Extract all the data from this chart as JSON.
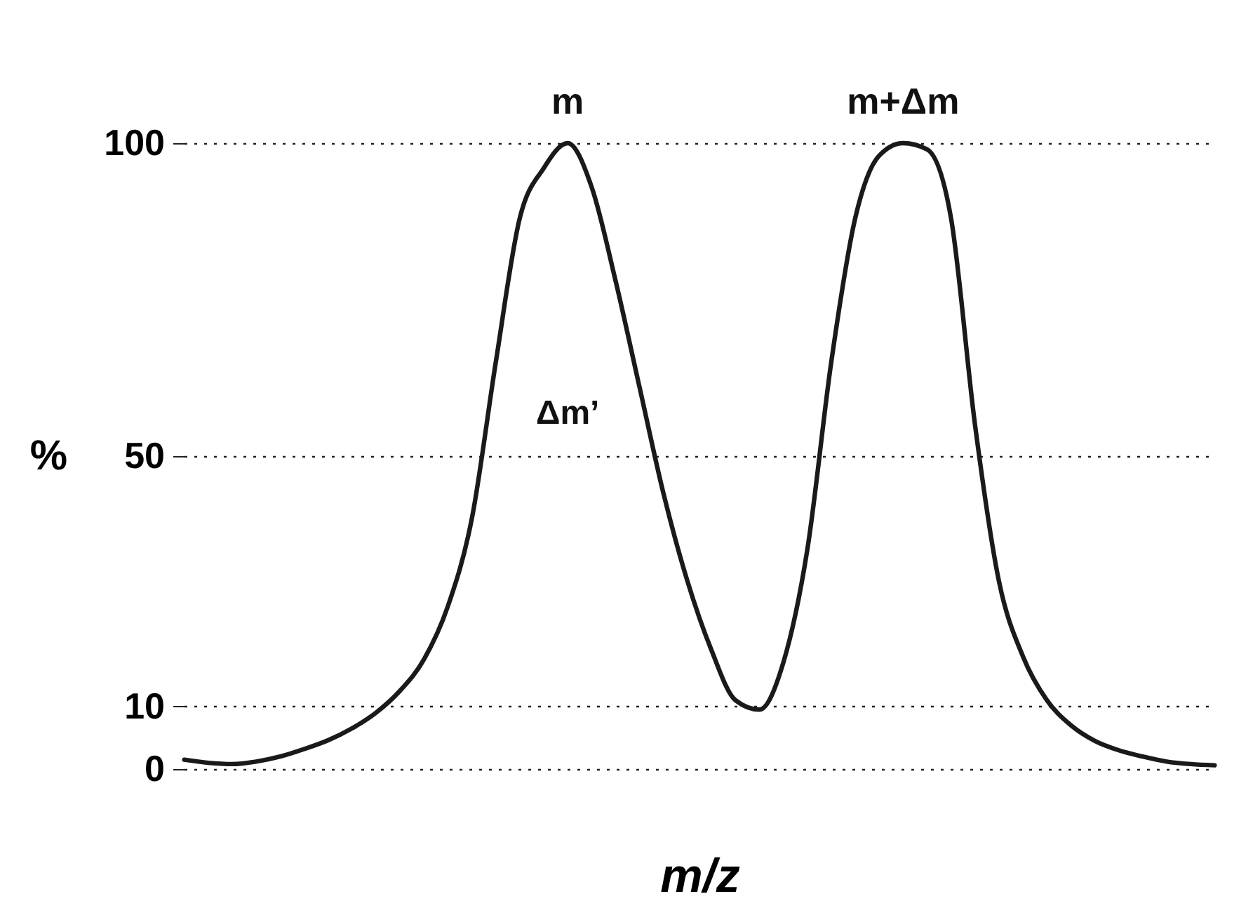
{
  "chart_data": {
    "type": "line",
    "xlabel": "m/z",
    "ylabel": "%",
    "categories": [
      null,
      null,
      null,
      null,
      null,
      null,
      null,
      null,
      null,
      null,
      null,
      null,
      null,
      null,
      null,
      null,
      null,
      null,
      null,
      null,
      null,
      null,
      null,
      null,
      null,
      null,
      null,
      null,
      null,
      null,
      null,
      null,
      null,
      null,
      null,
      null,
      null,
      null,
      null,
      null,
      null,
      null,
      null,
      null
    ],
    "series": [
      {
        "color": "#1a1a1a",
        "values": [
          1.5,
          1.0,
          0.8,
          1.2,
          2.0,
          3.2,
          4.6,
          6.5,
          9,
          12.5,
          17.5,
          26,
          40,
          65,
          88,
          96,
          100,
          93,
          78,
          61,
          44,
          30,
          19,
          11,
          9.5,
          17,
          35,
          65,
          88,
          98,
          100,
          99,
          88,
          55,
          30,
          18,
          11,
          7,
          4.5,
          3,
          2,
          1.2,
          0.8,
          0.6
        ]
      }
    ],
    "ylim": [
      0,
      100
    ],
    "yticks": [
      0,
      10,
      50,
      100
    ],
    "grid": "y",
    "line_style": "solid",
    "marker": "none",
    "annotations": [
      {
        "text": "m",
        "y": 100
      },
      {
        "text": "m+Δm",
        "y": 100
      },
      "Δm’"
    ]
  }
}
